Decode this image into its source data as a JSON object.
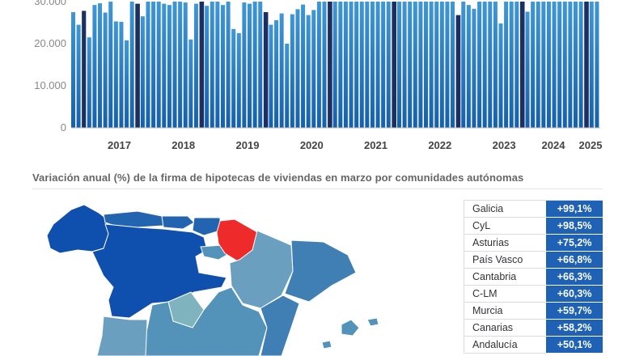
{
  "chart_data": {
    "type": "bar",
    "ylim": [
      0,
      30000
    ],
    "y_ticks": [
      "0",
      "10.000",
      "20.000",
      "30.000"
    ],
    "x_year_labels": [
      "2017",
      "2018",
      "2019",
      "2020",
      "2021",
      "2022",
      "2023",
      "2024",
      "2025"
    ],
    "values": [
      27500,
      24500,
      27800,
      21500,
      29200,
      29600,
      27400,
      30000,
      25300,
      25200,
      20800,
      30000,
      29500,
      26500,
      30000,
      30000,
      30000,
      29500,
      29200,
      30000,
      30000,
      29800,
      21000,
      29500,
      30000,
      29000,
      30000,
      30000,
      29200,
      30000,
      23500,
      22500,
      29800,
      29500,
      30000,
      30000,
      27500,
      24500,
      25600,
      27200,
      20000,
      27000,
      28200,
      29300,
      26800,
      28000,
      30000,
      30000,
      30000,
      30000,
      30000,
      30000,
      30000,
      30000,
      30000,
      30000,
      30000,
      30000,
      30000,
      30000,
      30000,
      30000,
      30000,
      30000,
      30000,
      30000,
      30000,
      30000,
      30000,
      30000,
      30000,
      30000,
      26800,
      30000,
      29200,
      28300,
      30000,
      30000,
      30000,
      30000,
      24800,
      30000,
      30000,
      30000,
      30000,
      27600,
      30000,
      30000,
      30000,
      30000,
      30000,
      30000,
      30000,
      30000,
      30000,
      30000,
      30000,
      30000,
      30000
    ],
    "highlight_every": 12,
    "colors": {
      "bar_top": "#3f97d6",
      "bar_bottom": "#1560ad",
      "highlight": "#1c2f63",
      "axis": "#bbbbbb"
    }
  },
  "map": {
    "title": "Variación anual (%) de la firma de hipotecas de viviendas en marzo por comunidades autónomas",
    "colors": {
      "darkest": "#0f4fae",
      "dark": "#2364b0",
      "mid": "#3f7fb4",
      "light": "#5392b9",
      "lighter": "#6b9fc0",
      "pale": "#7fb3be",
      "highlight": "#ee2a2a"
    }
  },
  "table": {
    "rows": [
      {
        "region": "Galicia",
        "value": "+99,1%"
      },
      {
        "region": "CyL",
        "value": "+98,5%"
      },
      {
        "region": "Asturias",
        "value": "+75,2%"
      },
      {
        "region": "País Vasco",
        "value": "+66,8%"
      },
      {
        "region": "Cantabria",
        "value": "+66,3%"
      },
      {
        "region": "C-LM",
        "value": "+60,3%"
      },
      {
        "region": "Murcia",
        "value": "+59,7%"
      },
      {
        "region": "Canarias",
        "value": "+58,2%"
      },
      {
        "region": "Andalucía",
        "value": "+50,1%"
      }
    ]
  }
}
